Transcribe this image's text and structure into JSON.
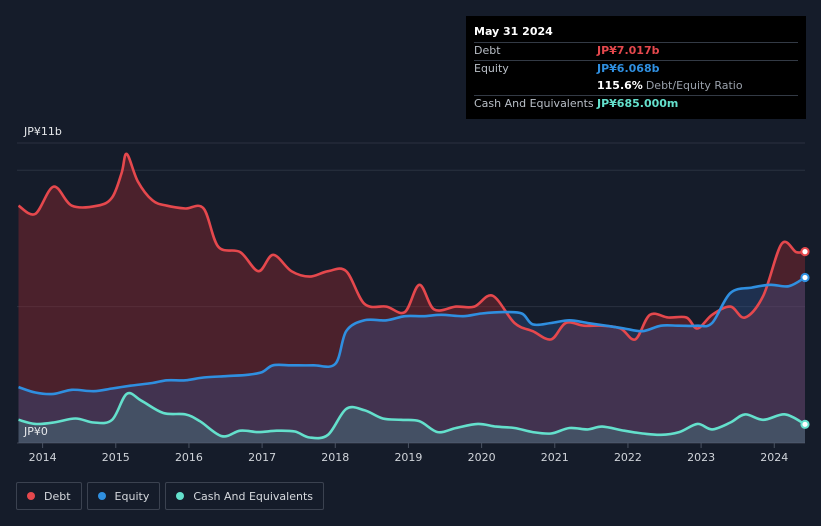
{
  "tooltip": {
    "date": "May 31 2024",
    "debt_label": "Debt",
    "debt_value": "JP¥7.017b",
    "equity_label": "Equity",
    "equity_value": "JP¥6.068b",
    "ratio_value": "115.6%",
    "ratio_label": "Debt/Equity Ratio",
    "cash_label": "Cash And Equivalents",
    "cash_value": "JP¥685.000m"
  },
  "legend": {
    "debt": "Debt",
    "equity": "Equity",
    "cash": "Cash And Equivalents"
  },
  "colors": {
    "debt": "#e5484d",
    "equity": "#2f8fe0",
    "cash": "#64e0cc",
    "background": "#151c2a"
  },
  "chart_data": {
    "type": "area",
    "y_axis": {
      "top_label": "JP¥11b",
      "bottom_label": "JP¥0",
      "ylim": [
        0,
        11
      ]
    },
    "x_ticks": [
      "2014",
      "2015",
      "2016",
      "2017",
      "2018",
      "2019",
      "2020",
      "2021",
      "2022",
      "2023",
      "2024"
    ],
    "xlim": [
      2013.65,
      2024.42
    ],
    "series": [
      {
        "name": "Debt",
        "points": [
          [
            2013.67,
            8.7
          ],
          [
            2013.9,
            8.4
          ],
          [
            2014.15,
            9.4
          ],
          [
            2014.4,
            8.7
          ],
          [
            2014.75,
            8.7
          ],
          [
            2014.95,
            9.0
          ],
          [
            2015.08,
            9.9
          ],
          [
            2015.15,
            10.6
          ],
          [
            2015.3,
            9.6
          ],
          [
            2015.5,
            8.9
          ],
          [
            2015.7,
            8.7
          ],
          [
            2015.95,
            8.6
          ],
          [
            2016.2,
            8.6
          ],
          [
            2016.4,
            7.2
          ],
          [
            2016.7,
            7.0
          ],
          [
            2016.95,
            6.3
          ],
          [
            2017.15,
            6.9
          ],
          [
            2017.4,
            6.3
          ],
          [
            2017.65,
            6.1
          ],
          [
            2017.9,
            6.3
          ],
          [
            2018.15,
            6.3
          ],
          [
            2018.4,
            5.1
          ],
          [
            2018.7,
            5.0
          ],
          [
            2018.95,
            4.8
          ],
          [
            2019.15,
            5.8
          ],
          [
            2019.35,
            4.9
          ],
          [
            2019.65,
            5.0
          ],
          [
            2019.9,
            5.0
          ],
          [
            2020.15,
            5.4
          ],
          [
            2020.45,
            4.4
          ],
          [
            2020.7,
            4.1
          ],
          [
            2020.95,
            3.8
          ],
          [
            2021.15,
            4.4
          ],
          [
            2021.4,
            4.3
          ],
          [
            2021.65,
            4.3
          ],
          [
            2021.9,
            4.2
          ],
          [
            2022.1,
            3.8
          ],
          [
            2022.3,
            4.7
          ],
          [
            2022.55,
            4.6
          ],
          [
            2022.8,
            4.6
          ],
          [
            2022.95,
            4.2
          ],
          [
            2023.15,
            4.7
          ],
          [
            2023.4,
            5.0
          ],
          [
            2023.6,
            4.6
          ],
          [
            2023.85,
            5.4
          ],
          [
            2024.1,
            7.3
          ],
          [
            2024.3,
            7.0
          ],
          [
            2024.42,
            7.017
          ]
        ]
      },
      {
        "name": "Equity",
        "points": [
          [
            2013.67,
            2.05
          ],
          [
            2013.9,
            1.85
          ],
          [
            2014.15,
            1.8
          ],
          [
            2014.4,
            1.95
          ],
          [
            2014.7,
            1.9
          ],
          [
            2014.95,
            2.0
          ],
          [
            2015.2,
            2.1
          ],
          [
            2015.5,
            2.2
          ],
          [
            2015.7,
            2.3
          ],
          [
            2015.95,
            2.3
          ],
          [
            2016.2,
            2.4
          ],
          [
            2016.5,
            2.45
          ],
          [
            2016.8,
            2.5
          ],
          [
            2017.0,
            2.6
          ],
          [
            2017.15,
            2.85
          ],
          [
            2017.4,
            2.85
          ],
          [
            2017.7,
            2.85
          ],
          [
            2018.0,
            2.9
          ],
          [
            2018.15,
            4.1
          ],
          [
            2018.4,
            4.5
          ],
          [
            2018.7,
            4.5
          ],
          [
            2018.95,
            4.65
          ],
          [
            2019.2,
            4.65
          ],
          [
            2019.45,
            4.7
          ],
          [
            2019.75,
            4.65
          ],
          [
            2020.0,
            4.75
          ],
          [
            2020.3,
            4.8
          ],
          [
            2020.55,
            4.75
          ],
          [
            2020.7,
            4.35
          ],
          [
            2020.95,
            4.4
          ],
          [
            2021.2,
            4.5
          ],
          [
            2021.45,
            4.4
          ],
          [
            2021.7,
            4.3
          ],
          [
            2021.95,
            4.2
          ],
          [
            2022.2,
            4.1
          ],
          [
            2022.45,
            4.3
          ],
          [
            2022.7,
            4.3
          ],
          [
            2022.95,
            4.3
          ],
          [
            2023.15,
            4.4
          ],
          [
            2023.4,
            5.5
          ],
          [
            2023.7,
            5.7
          ],
          [
            2023.95,
            5.8
          ],
          [
            2024.2,
            5.75
          ],
          [
            2024.42,
            6.068
          ]
        ]
      },
      {
        "name": "Cash And Equivalents",
        "points": [
          [
            2013.67,
            0.85
          ],
          [
            2013.9,
            0.7
          ],
          [
            2014.15,
            0.75
          ],
          [
            2014.45,
            0.9
          ],
          [
            2014.7,
            0.75
          ],
          [
            2014.95,
            0.85
          ],
          [
            2015.15,
            1.8
          ],
          [
            2015.35,
            1.55
          ],
          [
            2015.65,
            1.1
          ],
          [
            2015.95,
            1.05
          ],
          [
            2016.15,
            0.8
          ],
          [
            2016.45,
            0.25
          ],
          [
            2016.7,
            0.45
          ],
          [
            2016.95,
            0.4
          ],
          [
            2017.2,
            0.45
          ],
          [
            2017.45,
            0.42
          ],
          [
            2017.65,
            0.2
          ],
          [
            2017.9,
            0.3
          ],
          [
            2018.15,
            1.25
          ],
          [
            2018.4,
            1.2
          ],
          [
            2018.65,
            0.9
          ],
          [
            2018.9,
            0.85
          ],
          [
            2019.15,
            0.8
          ],
          [
            2019.4,
            0.4
          ],
          [
            2019.65,
            0.55
          ],
          [
            2019.95,
            0.7
          ],
          [
            2020.2,
            0.6
          ],
          [
            2020.45,
            0.55
          ],
          [
            2020.7,
            0.4
          ],
          [
            2020.95,
            0.35
          ],
          [
            2021.2,
            0.55
          ],
          [
            2021.45,
            0.5
          ],
          [
            2021.65,
            0.6
          ],
          [
            2021.95,
            0.45
          ],
          [
            2022.2,
            0.35
          ],
          [
            2022.45,
            0.3
          ],
          [
            2022.7,
            0.4
          ],
          [
            2022.95,
            0.7
          ],
          [
            2023.15,
            0.5
          ],
          [
            2023.4,
            0.75
          ],
          [
            2023.6,
            1.05
          ],
          [
            2023.85,
            0.85
          ],
          [
            2024.15,
            1.05
          ],
          [
            2024.42,
            0.685
          ]
        ]
      }
    ]
  }
}
